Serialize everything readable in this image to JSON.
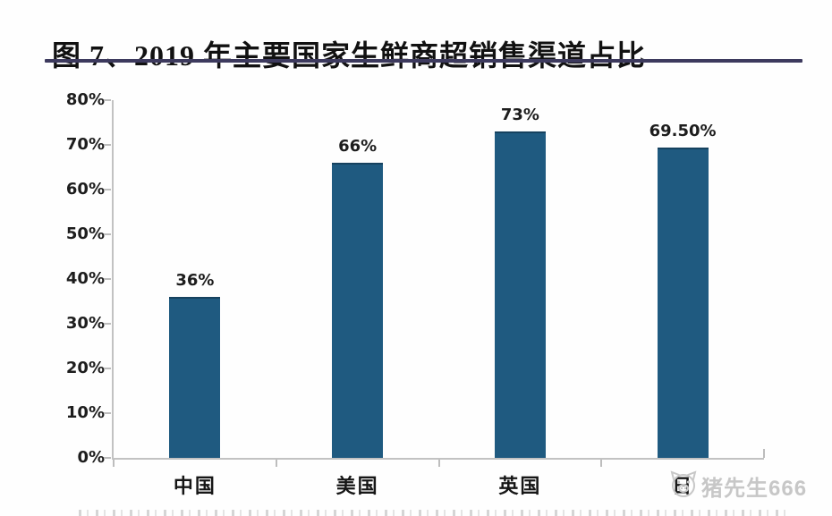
{
  "header": {
    "title": "图 7、2019 年主要国家生鲜商超销售渠道占比",
    "underline_color": "#3d3a5e"
  },
  "chart_data": {
    "type": "bar",
    "title": "图 7、2019 年主要国家生鲜商超销售渠道占比",
    "categories": [
      "中国",
      "美国",
      "英国",
      "日"
    ],
    "values": [
      36,
      66,
      73,
      69.5
    ],
    "value_labels": [
      "36%",
      "66%",
      "73%",
      "69.50%"
    ],
    "ylim": [
      0,
      80
    ],
    "yticks": [
      "0%",
      "10%",
      "20%",
      "30%",
      "40%",
      "50%",
      "60%",
      "70%",
      "80%"
    ],
    "xlabel": "",
    "ylabel": "",
    "grid": false,
    "legend": null,
    "bar_color": "#1f5a80",
    "bar_top_color": "#16425f",
    "axis_color": "#c2c2c2",
    "label_color": "#1d1d1d"
  },
  "watermark": {
    "icon": "pig-icon",
    "text": "猪先生666",
    "color": "#c7c7c7"
  }
}
